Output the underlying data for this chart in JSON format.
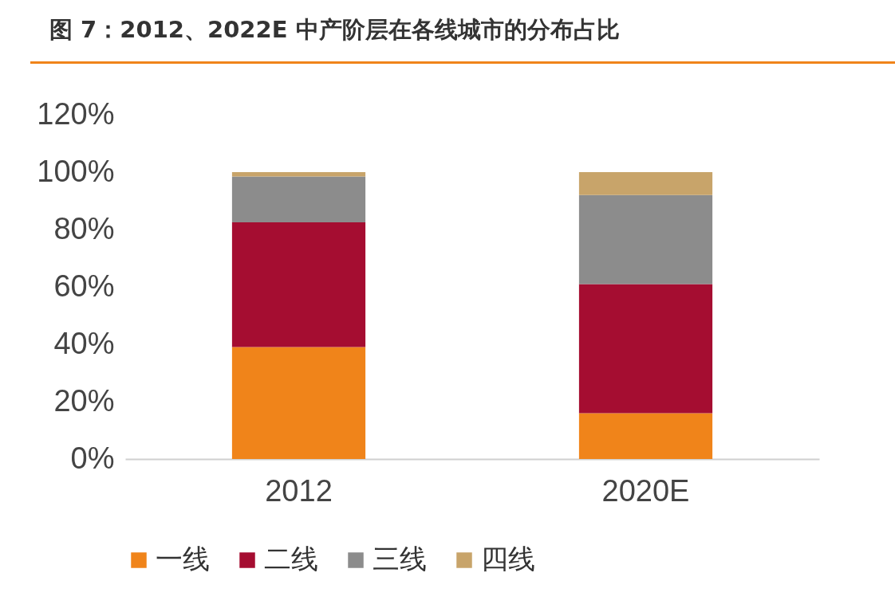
{
  "chart_data": {
    "type": "bar",
    "title": "图 7：2012、2022E 中产阶层在各线城市的分布占比",
    "categories": [
      "2012",
      "2020E"
    ],
    "stacked": true,
    "ylim": [
      0,
      120
    ],
    "yticks": [
      {
        "value": 0,
        "label": "0%"
      },
      {
        "value": 20,
        "label": "20%"
      },
      {
        "value": 40,
        "label": "40%"
      },
      {
        "value": 60,
        "label": "60%"
      },
      {
        "value": 80,
        "label": "80%"
      },
      {
        "value": 100,
        "label": "100%"
      },
      {
        "value": 120,
        "label": "120%"
      }
    ],
    "series": [
      {
        "name": "一线",
        "color": "#f0841a",
        "values": [
          39,
          16
        ]
      },
      {
        "name": "二线",
        "color": "#a50d31",
        "values": [
          43.5,
          45
        ]
      },
      {
        "name": "三线",
        "color": "#8c8c8c",
        "values": [
          16,
          31
        ]
      },
      {
        "name": "四线",
        "color": "#c8a46a",
        "values": [
          1.5,
          8
        ]
      }
    ],
    "grid": false,
    "legend": "bottom"
  }
}
